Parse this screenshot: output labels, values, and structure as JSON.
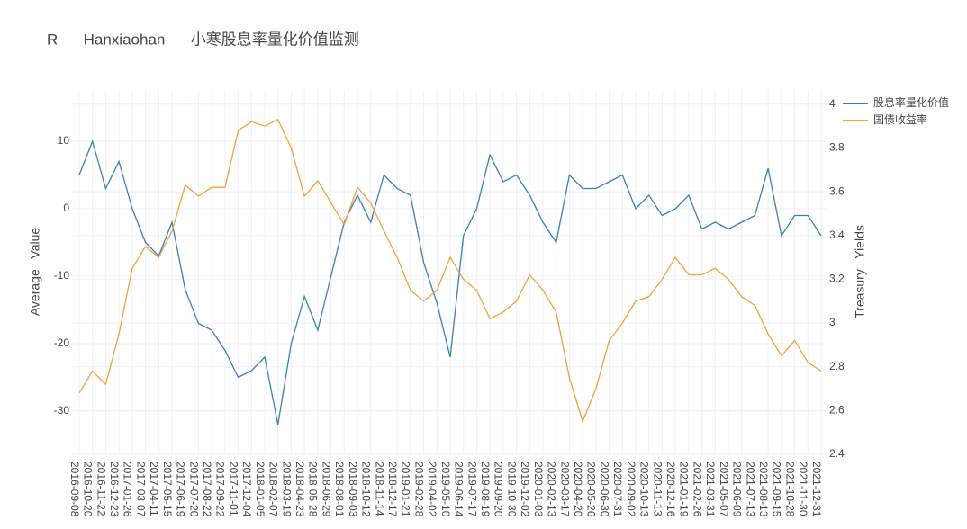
{
  "chart_data": {
    "type": "line",
    "title": "R      Hanxiaohan      小寒股息率量化价值监测",
    "ylabel": "Average   Value",
    "y2label": "Treasury   Yields",
    "categories": [
      "2016-09-08",
      "2016-10-20",
      "2016-11-22",
      "2016-12-23",
      "2017-01-26",
      "2017-03-07",
      "2017-04-11",
      "2017-05-15",
      "2017-06-19",
      "2017-07-20",
      "2017-08-22",
      "2017-09-22",
      "2017-11-01",
      "2017-12-04",
      "2018-01-05",
      "2018-02-07",
      "2018-03-19",
      "2018-04-23",
      "2018-05-28",
      "2018-06-29",
      "2018-08-01",
      "2018-09-03",
      "2018-10-12",
      "2018-11-14",
      "2018-12-17",
      "2019-01-21",
      "2019-02-28",
      "2019-04-02",
      "2019-05-10",
      "2019-06-14",
      "2019-07-17",
      "2019-08-19",
      "2019-09-20",
      "2019-10-30",
      "2019-12-02",
      "2020-01-03",
      "2020-02-13",
      "2020-03-17",
      "2020-04-20",
      "2020-05-26",
      "2020-06-30",
      "2020-07-31",
      "2020-09-02",
      "2020-10-13",
      "2020-11-13",
      "2020-12-16",
      "2021-01-19",
      "2021-02-26",
      "2021-03-31",
      "2021-05-07",
      "2021-06-09",
      "2021-07-13",
      "2021-08-13",
      "2021-09-15",
      "2021-10-28",
      "2021-11-30",
      "2021-12-31"
    ],
    "series": [
      {
        "name": "股息率量化价值",
        "color": "#3a7fb8",
        "axis": "y",
        "values": [
          5,
          10,
          3,
          7,
          0,
          -5,
          -7,
          -2,
          -12,
          -17,
          -18,
          -21,
          -25,
          -24,
          -22,
          -32,
          -20,
          -13,
          -18,
          -10,
          -2,
          2,
          -2,
          5,
          3,
          2,
          -8,
          -14,
          -22,
          -4,
          0,
          8,
          4,
          5,
          2,
          -2,
          -5,
          5,
          3,
          3,
          4,
          5,
          0,
          2,
          -1,
          0,
          2,
          -3,
          -2,
          -3,
          -2,
          -1,
          6,
          -4,
          -1,
          -1,
          -4
        ]
      },
      {
        "name": "国债收益率",
        "color": "#f5a03c",
        "axis": "y2",
        "values": [
          2.68,
          2.78,
          2.72,
          2.95,
          3.25,
          3.35,
          3.3,
          3.42,
          3.63,
          3.58,
          3.62,
          3.62,
          3.88,
          3.92,
          3.9,
          3.93,
          3.8,
          3.58,
          3.65,
          3.55,
          3.45,
          3.62,
          3.55,
          3.42,
          3.3,
          3.15,
          3.1,
          3.15,
          3.3,
          3.2,
          3.15,
          3.02,
          3.05,
          3.1,
          3.22,
          3.15,
          3.05,
          2.75,
          2.55,
          2.7,
          2.92,
          3.0,
          3.1,
          3.12,
          3.2,
          3.3,
          3.22,
          3.22,
          3.25,
          3.2,
          3.12,
          3.08,
          2.95,
          2.85,
          2.92,
          2.82,
          2.78
        ]
      }
    ],
    "ylim": [
      -36.4,
      17.6
    ],
    "yticks": [
      -30,
      -20,
      -10,
      0,
      10
    ],
    "y2lim": [
      2.4,
      4.065
    ],
    "y2ticks": [
      2.4,
      2.6,
      2.8,
      3,
      3.2,
      3.4,
      3.6,
      3.8,
      4
    ],
    "grid": true,
    "legend": "top-right"
  }
}
